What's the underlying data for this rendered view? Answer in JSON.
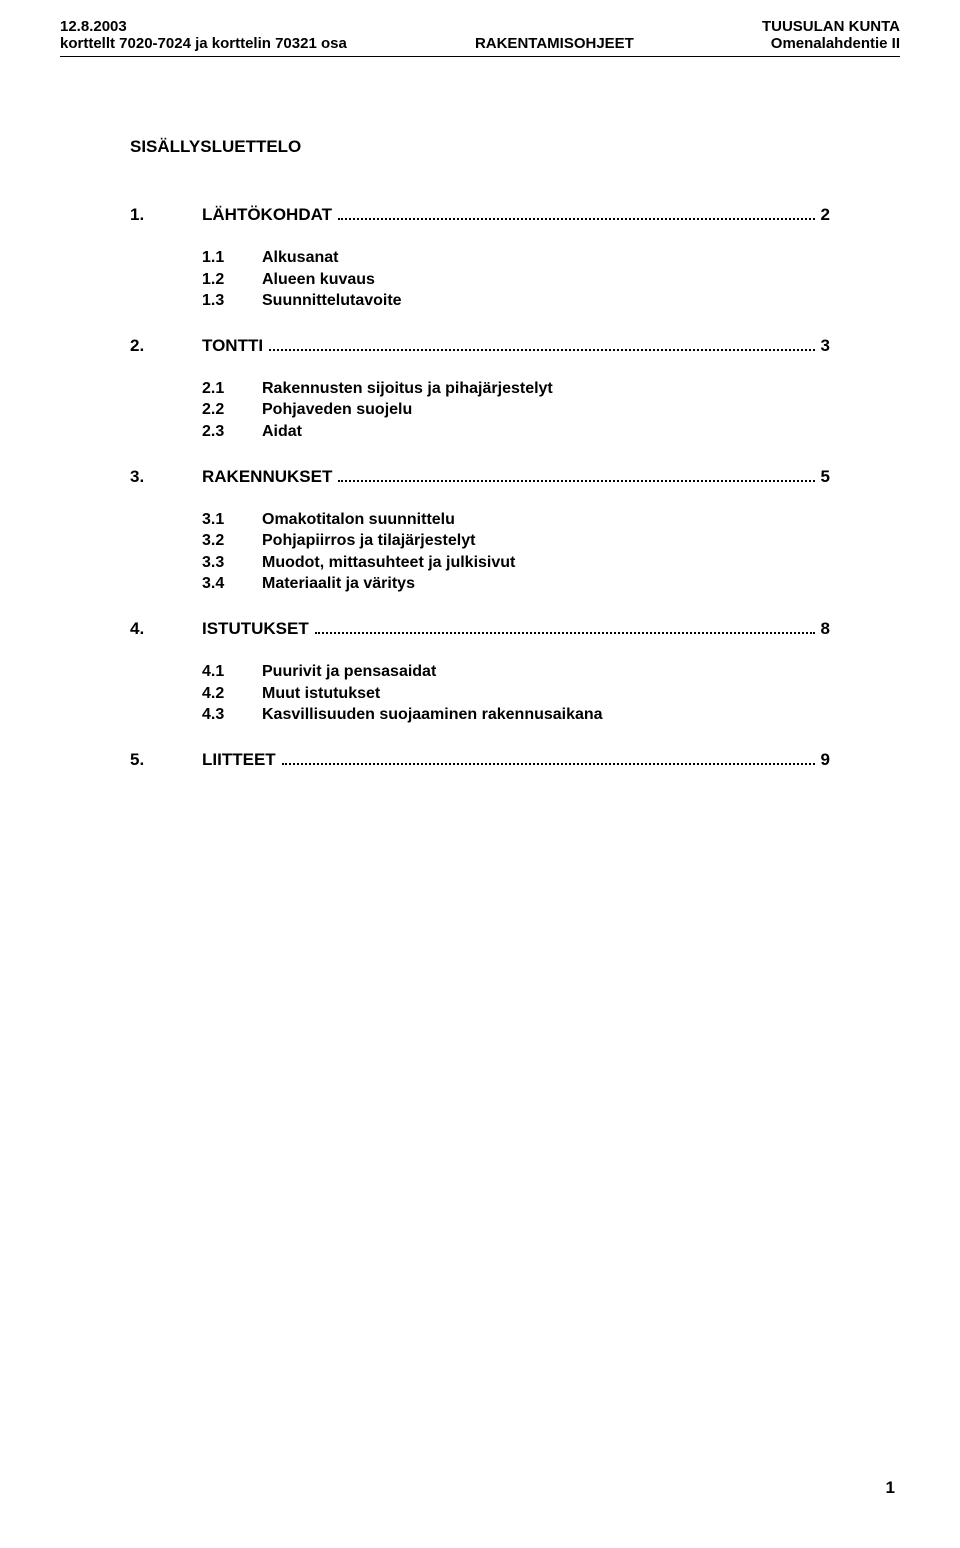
{
  "header": {
    "date": "12.8.2003",
    "left_line2": "korttellt 7020-7024 ja korttelin 70321 osa",
    "center": "RAKENTAMISOHJEET",
    "right_line1": "TUUSULAN KUNTA",
    "right_line2": "Omenalahdentie II"
  },
  "title": "SISÄLLYSLUETTELO",
  "sections": [
    {
      "num": "1.",
      "label": "LÄHTÖKOHDAT",
      "page": "2",
      "subs": [
        {
          "num": "1.1",
          "label": "Alkusanat"
        },
        {
          "num": "1.2",
          "label": "Alueen kuvaus"
        },
        {
          "num": "1.3",
          "label": "Suunnittelutavoite"
        }
      ]
    },
    {
      "num": "2.",
      "label": "TONTTI",
      "page": "3",
      "subs": [
        {
          "num": "2.1",
          "label": "Rakennusten sijoitus ja pihajärjestelyt"
        },
        {
          "num": "2.2",
          "label": "Pohjaveden suojelu"
        },
        {
          "num": "2.3",
          "label": "Aidat"
        }
      ]
    },
    {
      "num": "3.",
      "label": "RAKENNUKSET",
      "page": "5",
      "subs": [
        {
          "num": "3.1",
          "label": "Omakotitalon suunnittelu"
        },
        {
          "num": "3.2",
          "label": "Pohjapiirros ja tilajärjestelyt"
        },
        {
          "num": "3.3",
          "label": "Muodot, mittasuhteet ja julkisivut"
        },
        {
          "num": "3.4",
          "label": "Materiaalit ja väritys"
        }
      ]
    },
    {
      "num": "4.",
      "label": "ISTUTUKSET",
      "page": "8",
      "subs": [
        {
          "num": "4.1",
          "label": "Puurivit ja pensasaidat"
        },
        {
          "num": "4.2",
          "label": "Muut istutukset"
        },
        {
          "num": "4.3",
          "label": "Kasvillisuuden suojaaminen rakennusaikana"
        }
      ]
    },
    {
      "num": "5.",
      "label": "LIITTEET",
      "page": "9",
      "subs": []
    }
  ],
  "page_number": "1"
}
